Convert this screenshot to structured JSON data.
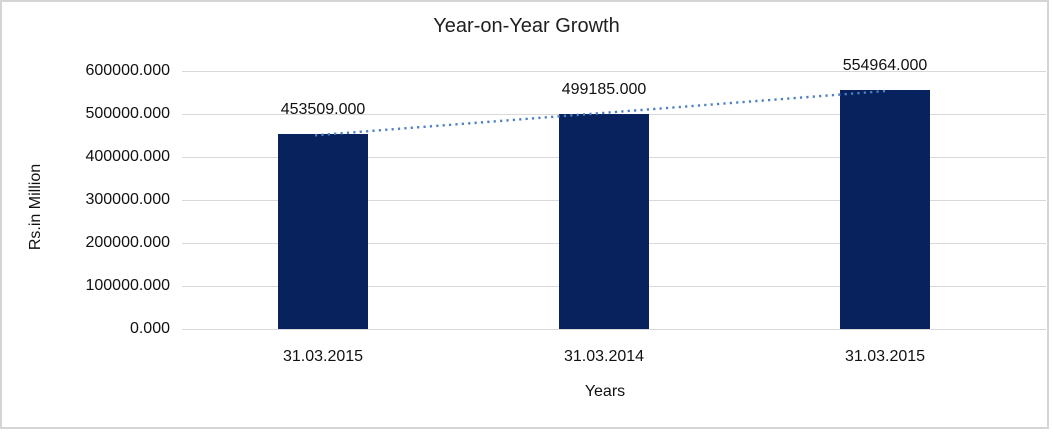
{
  "chart_data": {
    "type": "bar",
    "title": "Year-on-Year Growth",
    "xlabel": "Years",
    "ylabel": "Rs.in Million",
    "categories": [
      "31.03.2015",
      "31.03.2014",
      "31.03.2015"
    ],
    "values": [
      453509,
      499185,
      554964
    ],
    "value_labels": [
      "453509.000",
      "499185.000",
      "554964.000"
    ],
    "y_ticks": [
      {
        "value": 600000,
        "label": "600000.000"
      },
      {
        "value": 500000,
        "label": "500000.000"
      },
      {
        "value": 400000,
        "label": "400000.000"
      },
      {
        "value": 300000,
        "label": "300000.000"
      },
      {
        "value": 200000,
        "label": "200000.000"
      },
      {
        "value": 100000,
        "label": "100000.000"
      },
      {
        "value": 0,
        "label": "0.000"
      }
    ],
    "ylim": [
      0,
      600000
    ],
    "grid": true,
    "legend": "none",
    "bar_color": "#08225e",
    "gridline_color": "#d9d9d9",
    "border_color": "#d5d5d5",
    "trendline": {
      "type": "linear",
      "style": "dotted",
      "color": "#4d80c0"
    }
  }
}
